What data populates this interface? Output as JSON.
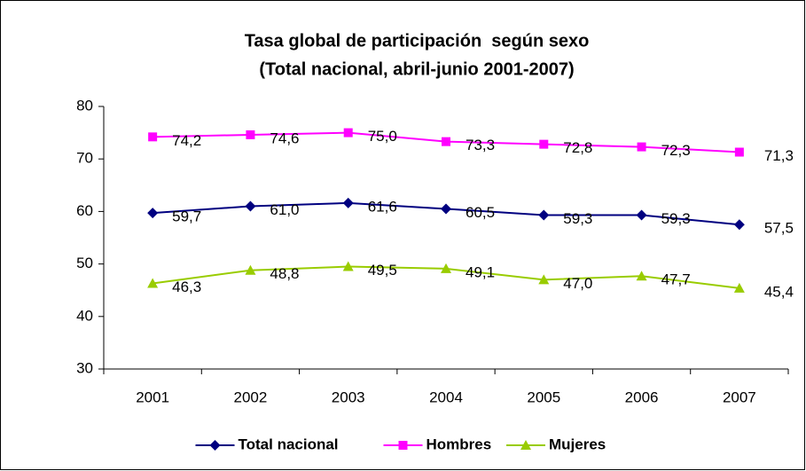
{
  "chart_data": {
    "type": "line",
    "title": "Tasa global de participación  según sexo",
    "subtitle": "(Total nacional, abril-junio 2001-2007)",
    "categories": [
      "2001",
      "2002",
      "2003",
      "2004",
      "2005",
      "2006",
      "2007"
    ],
    "series": [
      {
        "name": "Total nacional",
        "color": "#000080",
        "marker": "diamond",
        "values": [
          59.7,
          61.0,
          61.6,
          60.5,
          59.3,
          59.3,
          57.5
        ],
        "value_labels": [
          "59,7",
          "61,0",
          "61,6",
          "60,5",
          "59,3",
          "59,3",
          "57,5"
        ]
      },
      {
        "name": "Hombres",
        "color": "#ff00ff",
        "marker": "square",
        "values": [
          74.2,
          74.6,
          75.0,
          73.3,
          72.8,
          72.3,
          71.3
        ],
        "value_labels": [
          "74,2",
          "74,6",
          "75,0",
          "73,3",
          "72,8",
          "72,3",
          "71,3"
        ]
      },
      {
        "name": "Mujeres",
        "color": "#99cc00",
        "marker": "triangle",
        "values": [
          46.3,
          48.8,
          49.5,
          49.1,
          47.0,
          47.7,
          45.4
        ],
        "value_labels": [
          "46,3",
          "48,8",
          "49,5",
          "49,1",
          "47,0",
          "47,7",
          "45,4"
        ]
      }
    ],
    "ylim": [
      30,
      80
    ],
    "yticks": [
      30,
      40,
      50,
      60,
      70,
      80
    ],
    "grid": false,
    "legend": "bottom"
  }
}
